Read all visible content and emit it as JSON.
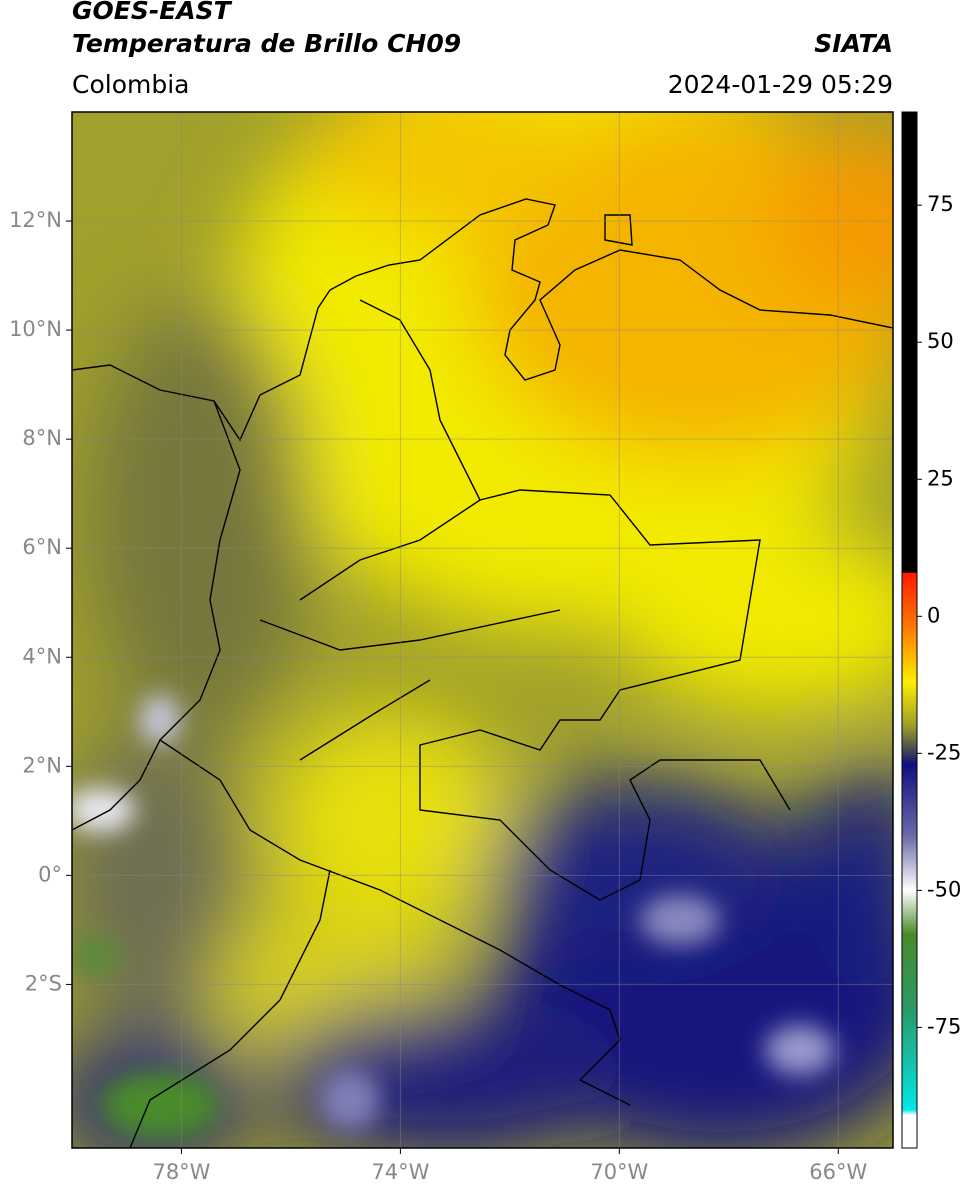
{
  "map": {
    "title": "GOES-EAST",
    "subtitle": "Temperatura de Brillo CH09",
    "source": "SIATA",
    "region": "Colombia",
    "datetime": "2024-01-29 05:29",
    "xlim": [
      -80,
      -65
    ],
    "ylim": [
      -5,
      14
    ],
    "xticks": [
      {
        "value": -78,
        "label": "78°W"
      },
      {
        "value": -74,
        "label": "74°W"
      },
      {
        "value": -70,
        "label": "70°W"
      },
      {
        "value": -66,
        "label": "66°W"
      }
    ],
    "yticks": [
      {
        "value": 12,
        "label": "12°N"
      },
      {
        "value": 10,
        "label": "10°N"
      },
      {
        "value": 8,
        "label": "8°N"
      },
      {
        "value": 6,
        "label": "6°N"
      },
      {
        "value": 4,
        "label": "4°N"
      },
      {
        "value": 2,
        "label": "2°N"
      },
      {
        "value": 0,
        "label": "0°"
      },
      {
        "value": -2,
        "label": "2°S"
      }
    ],
    "grid": true,
    "colorbar": {
      "lim": [
        -97,
        92
      ],
      "ticks": [
        75,
        50,
        25,
        0,
        -25,
        -50,
        -75
      ],
      "stops": [
        {
          "value": 92,
          "color": "#000000"
        },
        {
          "value": 8,
          "color": "#000000"
        },
        {
          "value": 7.9,
          "color": "#ff1a00"
        },
        {
          "value": -2,
          "color": "#ff7a00"
        },
        {
          "value": -12,
          "color": "#ffee00"
        },
        {
          "value": -20,
          "color": "#9d9d2a"
        },
        {
          "value": -25,
          "color": "#3a3a5a"
        },
        {
          "value": -27,
          "color": "#10107e"
        },
        {
          "value": -40,
          "color": "#6a6aa8"
        },
        {
          "value": -50,
          "color": "#ffffff"
        },
        {
          "value": -58,
          "color": "#4a8a2a"
        },
        {
          "value": -72,
          "color": "#2a9a6a"
        },
        {
          "value": -90,
          "color": "#00e8e8"
        },
        {
          "value": -91,
          "color": "#ffffff"
        },
        {
          "value": -97,
          "color": "#ffffff"
        }
      ]
    }
  }
}
